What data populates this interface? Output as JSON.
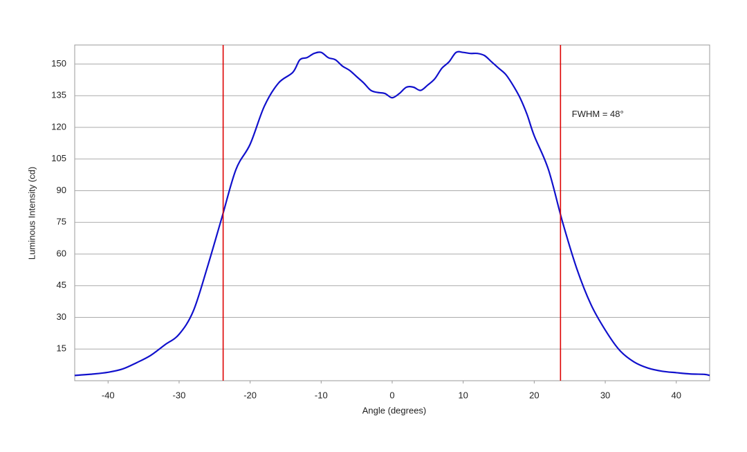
{
  "chart_data": {
    "type": "line",
    "x_label": "Angle (degrees)",
    "y_label": "Luminous Intensity (cd)",
    "xlim": [
      -44.7,
      44.7
    ],
    "ylim": [
      0,
      159
    ],
    "xticks": [
      -40,
      -30,
      -20,
      -10,
      0,
      10,
      20,
      30,
      40
    ],
    "yticks": [
      15,
      30,
      45,
      60,
      75,
      90,
      105,
      120,
      135,
      150
    ],
    "grid": true,
    "series": [
      {
        "color": "#1010cc",
        "x": [
          -44.7,
          -42,
          -40,
          -38,
          -36,
          -34,
          -32,
          -30,
          -28,
          -26,
          -24,
          -22,
          -20,
          -18,
          -16,
          -14,
          -13,
          -12,
          -11,
          -10,
          -9,
          -8,
          -7,
          -6,
          -5,
          -4,
          -3,
          -2,
          -1,
          0,
          1,
          2,
          3,
          4,
          5,
          6,
          7,
          8,
          9,
          10,
          11,
          12,
          13,
          14,
          15,
          16,
          17,
          18,
          19,
          20,
          22,
          24,
          26,
          28,
          30,
          32,
          34,
          36,
          38,
          40,
          42,
          44,
          44.7
        ],
        "values": [
          2.5,
          3.2,
          4,
          5.5,
          8.5,
          12,
          17,
          22,
          33,
          54,
          77,
          100,
          112,
          130,
          141,
          146,
          152,
          153,
          155,
          155.5,
          153,
          152,
          149,
          147,
          144,
          141,
          137.5,
          136.5,
          136,
          134,
          136,
          139,
          139,
          137.5,
          140,
          143,
          148,
          151,
          155.5,
          155.5,
          155,
          155,
          154,
          151,
          148,
          145,
          140,
          134,
          126,
          116,
          100,
          75,
          53,
          36,
          24,
          14.5,
          9,
          6,
          4.5,
          3.8,
          3.2,
          3,
          2.5
        ]
      }
    ],
    "markers": [
      {
        "x": -23.8,
        "color": "#dd0000"
      },
      {
        "x": 23.7,
        "color": "#dd0000"
      }
    ],
    "annotation": {
      "text": "FWHM = 48°",
      "x": 25.3,
      "y": 126
    }
  }
}
